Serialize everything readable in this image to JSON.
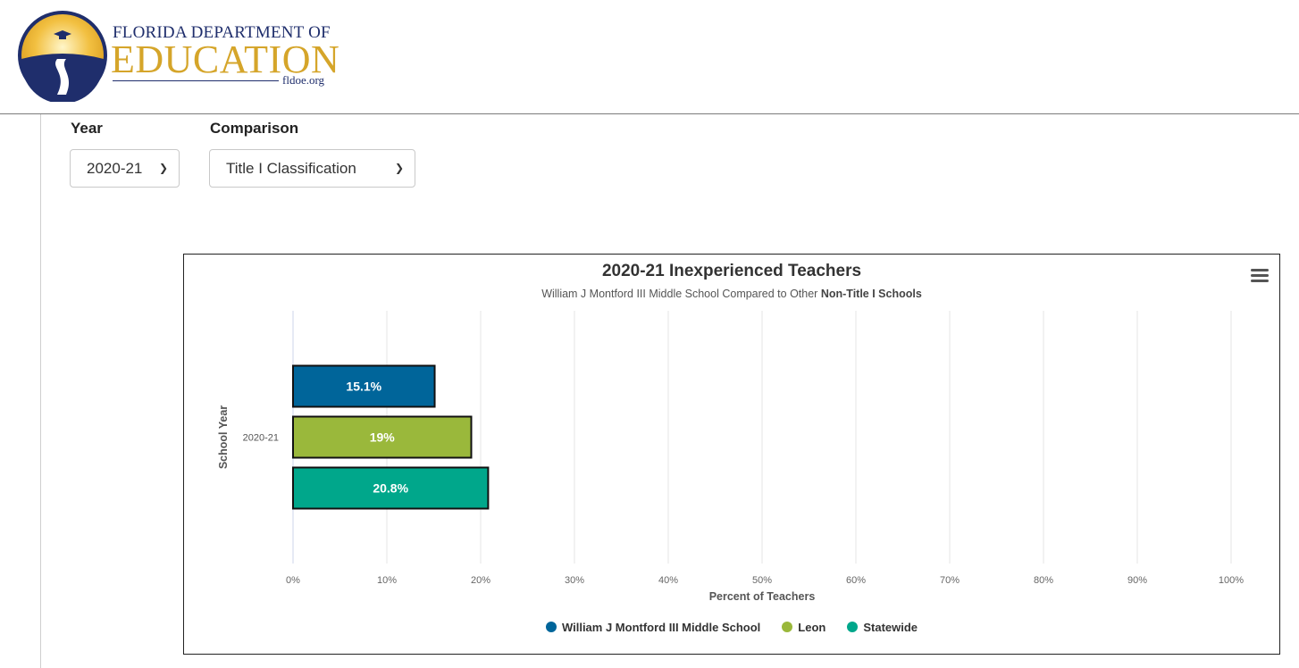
{
  "header": {
    "logo_line1": "FLORIDA DEPARTMENT OF",
    "logo_line2": "EDUCATION",
    "logo_url": "fldoe.org"
  },
  "filters": {
    "year": {
      "label": "Year",
      "selected": "2020-21"
    },
    "comparison": {
      "label": "Comparison",
      "selected": "Title I Classification"
    }
  },
  "colors": {
    "school": "#00659a",
    "district": "#9ab83b",
    "state": "#00a78b",
    "grid": "#e6e6e6",
    "axis": "#ccd6eb"
  },
  "chart": {
    "subtitle_prefix": "William J Montford III Middle School Compared to Other",
    "subtitle_bold": "Non-Title I Schools",
    "menu_icon": "hamburger-icon"
  },
  "chart_data": {
    "type": "bar",
    "orientation": "horizontal",
    "title": "2020-21 Inexperienced Teachers",
    "xlabel": "Percent of Teachers",
    "ylabel": "School Year",
    "categories": [
      "2020-21"
    ],
    "xlim": [
      0,
      100
    ],
    "ticks": [
      "0%",
      "10%",
      "20%",
      "30%",
      "40%",
      "50%",
      "60%",
      "70%",
      "80%",
      "90%",
      "100%"
    ],
    "series": [
      {
        "name": "William J Montford III Middle School",
        "values": [
          15.1
        ],
        "label": "15.1%",
        "color": "#00659a"
      },
      {
        "name": "Leon",
        "values": [
          19
        ],
        "label": "19%",
        "color": "#9ab83b"
      },
      {
        "name": "Statewide",
        "values": [
          20.8
        ],
        "label": "20.8%",
        "color": "#00a78b"
      }
    ],
    "grid": true,
    "legend": "bottom-center"
  }
}
